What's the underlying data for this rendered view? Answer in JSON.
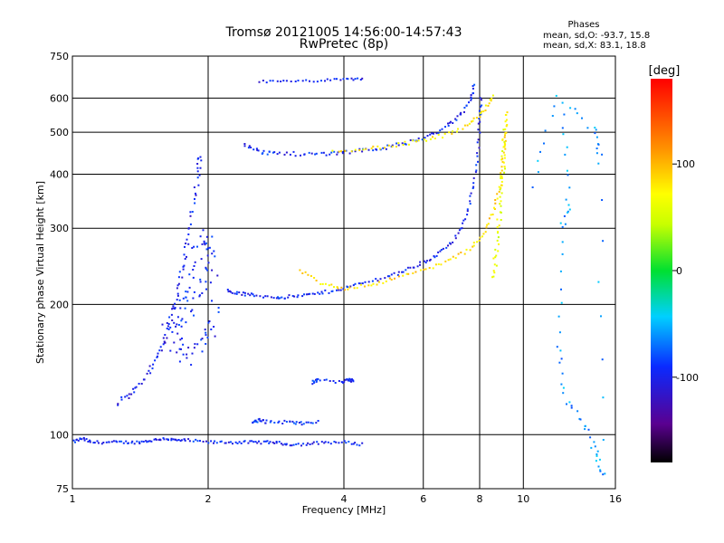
{
  "chart_data": {
    "type": "scatter",
    "title": "Tromsø 20121005 14:56:00-14:57:43",
    "subtitle": "RwPretec (8p)",
    "xlabel": "Frequency [MHz]",
    "ylabel": "Stationary phase Virtual Height [km]",
    "x_scale": "log2",
    "y_scale": "log",
    "xlim": [
      1,
      16
    ],
    "ylim": [
      75,
      750
    ],
    "x_ticks": [
      1,
      2,
      4,
      6,
      8,
      10,
      16
    ],
    "y_ticks": [
      75,
      100,
      200,
      300,
      400,
      500,
      600,
      750
    ],
    "grid": true,
    "phase_info": {
      "heading": "Phases",
      "line1": "mean, sd,O: -93.7, 15.8",
      "line2": "mean, sd,X:  83.1, 18.8"
    },
    "colorbar": {
      "label": "[deg]",
      "ticks": [
        100,
        0,
        -100
      ],
      "range": [
        -180,
        180
      ]
    },
    "traces": [
      {
        "id": "e_layer_o",
        "phase": -95,
        "spread": 0.01,
        "points": [
          [
            1.0,
            96
          ],
          [
            1.05,
            98
          ],
          [
            1.1,
            96
          ],
          [
            1.2,
            96
          ],
          [
            1.3,
            96
          ],
          [
            1.4,
            96
          ],
          [
            1.5,
            97
          ],
          [
            1.6,
            98
          ],
          [
            1.7,
            97
          ],
          [
            1.8,
            97
          ],
          [
            2.0,
            96
          ],
          [
            2.2,
            96
          ],
          [
            2.4,
            96
          ],
          [
            2.6,
            96
          ],
          [
            2.8,
            96
          ],
          [
            3.0,
            95
          ],
          [
            3.3,
            95
          ],
          [
            3.6,
            96
          ],
          [
            4.0,
            96
          ],
          [
            4.4,
            95
          ]
        ]
      },
      {
        "id": "es_patch",
        "phase": -90,
        "spread": 0.012,
        "points": [
          [
            2.5,
            107
          ],
          [
            2.6,
            108
          ],
          [
            2.7,
            107
          ],
          [
            3.0,
            107
          ],
          [
            3.2,
            106
          ],
          [
            3.5,
            107
          ]
        ]
      },
      {
        "id": "mid_patch",
        "phase": -95,
        "spread": 0.01,
        "points": [
          [
            3.4,
            132
          ],
          [
            3.5,
            134
          ],
          [
            3.95,
            132
          ],
          [
            4.1,
            134
          ],
          [
            4.2,
            133
          ]
        ]
      },
      {
        "id": "f1_rise",
        "phase": -100,
        "spread": 0.02,
        "points": [
          [
            1.25,
            118
          ],
          [
            1.35,
            125
          ],
          [
            1.45,
            135
          ],
          [
            1.55,
            150
          ],
          [
            1.6,
            165
          ],
          [
            1.65,
            185
          ],
          [
            1.7,
            210
          ],
          [
            1.75,
            240
          ],
          [
            1.8,
            280
          ],
          [
            1.85,
            330
          ],
          [
            1.9,
            400
          ],
          [
            1.92,
            440
          ]
        ]
      },
      {
        "id": "f1_cloud",
        "phase": -95,
        "spread": 0.06,
        "points": [
          [
            1.6,
            170
          ],
          [
            1.7,
            190
          ],
          [
            1.8,
            220
          ],
          [
            1.9,
            260
          ],
          [
            2.0,
            290
          ],
          [
            2.05,
            260
          ],
          [
            1.95,
            230
          ],
          [
            1.85,
            200
          ],
          [
            1.75,
            180
          ],
          [
            1.7,
            160
          ],
          [
            1.8,
            150
          ],
          [
            1.95,
            165
          ],
          [
            2.05,
            175
          ],
          [
            2.1,
            240
          ]
        ]
      },
      {
        "id": "f2_o_trace",
        "phase": -98,
        "spread": 0.012,
        "points": [
          [
            2.2,
            215
          ],
          [
            2.35,
            212
          ],
          [
            2.5,
            210
          ],
          [
            2.8,
            208
          ],
          [
            3.0,
            208
          ],
          [
            3.3,
            210
          ],
          [
            3.6,
            213
          ],
          [
            4.0,
            218
          ],
          [
            4.4,
            224
          ],
          [
            5.0,
            232
          ],
          [
            5.5,
            240
          ],
          [
            6.0,
            250
          ],
          [
            6.5,
            262
          ],
          [
            7.0,
            280
          ],
          [
            7.4,
            310
          ],
          [
            7.7,
            360
          ],
          [
            7.9,
            430
          ],
          [
            8.0,
            520
          ],
          [
            8.05,
            600
          ]
        ]
      },
      {
        "id": "f2_x_trace",
        "phase": 85,
        "spread": 0.012,
        "points": [
          [
            3.2,
            240
          ],
          [
            3.6,
            222
          ],
          [
            4.0,
            218
          ],
          [
            4.6,
            222
          ],
          [
            5.2,
            230
          ],
          [
            6.0,
            240
          ],
          [
            6.8,
            252
          ],
          [
            7.6,
            268
          ],
          [
            8.2,
            290
          ],
          [
            8.6,
            330
          ],
          [
            8.9,
            380
          ],
          [
            9.05,
            440
          ],
          [
            9.15,
            500
          ],
          [
            9.2,
            560
          ]
        ]
      },
      {
        "id": "f2_echo_o",
        "phase": -95,
        "spread": 0.014,
        "points": [
          [
            2.4,
            470
          ],
          [
            2.6,
            450
          ],
          [
            2.8,
            448
          ],
          [
            3.2,
            445
          ],
          [
            3.6,
            446
          ],
          [
            4.0,
            450
          ],
          [
            4.5,
            456
          ],
          [
            5.0,
            462
          ],
          [
            5.6,
            475
          ],
          [
            6.2,
            490
          ],
          [
            6.8,
            515
          ],
          [
            7.2,
            545
          ],
          [
            7.6,
            590
          ],
          [
            7.8,
            640
          ]
        ]
      },
      {
        "id": "f2_echo_x",
        "phase": 75,
        "spread": 0.014,
        "points": [
          [
            3.8,
            455
          ],
          [
            4.5,
            458
          ],
          [
            5.2,
            466
          ],
          [
            6.0,
            478
          ],
          [
            6.8,
            495
          ],
          [
            7.6,
            520
          ],
          [
            8.2,
            560
          ],
          [
            8.6,
            610
          ]
        ]
      },
      {
        "id": "top_band",
        "phase": -100,
        "spread": 0.008,
        "points": [
          [
            2.6,
            655
          ],
          [
            3.0,
            655
          ],
          [
            3.5,
            658
          ],
          [
            4.0,
            662
          ],
          [
            4.4,
            665
          ]
        ]
      },
      {
        "id": "near_vertical_x",
        "phase": 60,
        "spread": 0.02,
        "points": [
          [
            8.6,
            230
          ],
          [
            8.7,
            260
          ],
          [
            8.8,
            300
          ],
          [
            8.9,
            350
          ],
          [
            9.0,
            400
          ],
          [
            9.05,
            450
          ],
          [
            9.1,
            500
          ]
        ]
      },
      {
        "id": "scatter_right",
        "phase": -60,
        "spread": 0.03,
        "points": [
          [
            12.3,
            540
          ],
          [
            12.6,
            350
          ],
          [
            12.2,
            300
          ],
          [
            12.0,
            160
          ],
          [
            12.5,
            120
          ],
          [
            13.8,
            105
          ],
          [
            14.5,
            90
          ],
          [
            15.0,
            80
          ],
          [
            14.8,
            430
          ],
          [
            14.6,
            500
          ],
          [
            11.9,
            600
          ],
          [
            10.5,
            380
          ]
        ]
      }
    ]
  }
}
